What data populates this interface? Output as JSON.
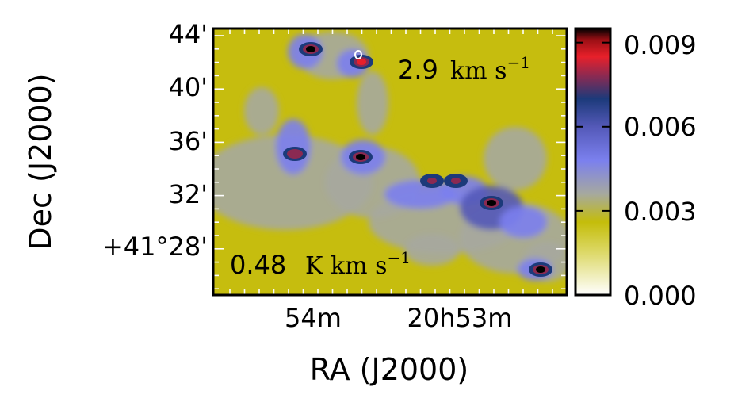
{
  "chart_data": {
    "type": "heatmap",
    "xlabel": "RA (J2000)",
    "ylabel": "Dec (J2000)",
    "x_ticks": [
      "54m",
      "20h53m"
    ],
    "y_ticks": [
      "44'",
      "40'",
      "36'",
      "32'",
      "+41°28'"
    ],
    "annotation_velocity": {
      "value": "2.9",
      "unit": "km s",
      "exponent": "−1"
    },
    "annotation_level": {
      "value": "0.48",
      "unit": "K km s",
      "exponent": "−1"
    },
    "colorbar": {
      "ticks": [
        "0.009",
        "0.006",
        "0.003",
        "0.000"
      ],
      "range": [
        0.0,
        0.0095
      ],
      "stops": [
        {
          "v": 0.0,
          "color": "#ffffff"
        },
        {
          "v": 0.0015,
          "color": "#ddd96a"
        },
        {
          "v": 0.0026,
          "color": "#c4bd0a"
        },
        {
          "v": 0.0036,
          "color": "#a6a99e"
        },
        {
          "v": 0.0048,
          "color": "#7b80ee"
        },
        {
          "v": 0.006,
          "color": "#5459b8"
        },
        {
          "v": 0.007,
          "color": "#1c3a7a"
        },
        {
          "v": 0.0078,
          "color": "#8a2a52"
        },
        {
          "v": 0.0085,
          "color": "#e8202a"
        },
        {
          "v": 0.0091,
          "color": "#9a0f14"
        },
        {
          "v": 0.0095,
          "color": "#000000"
        }
      ]
    },
    "peaks": [
      {
        "ra": "20h54m01s",
        "dec": "+41°42.8'",
        "value": 0.0095
      },
      {
        "ra": "20h53m46s",
        "dec": "+41°42.0'",
        "value": 0.0085
      },
      {
        "ra": "20h54m14s",
        "dec": "+41°34.9'",
        "value": 0.0082
      },
      {
        "ra": "20h53m48s",
        "dec": "+41°34.4'",
        "value": 0.0095
      },
      {
        "ra": "20h53m23s",
        "dec": "+41°32.0'",
        "value": 0.0078
      },
      {
        "ra": "20h53m12s",
        "dec": "+41°32.4'",
        "value": 0.008
      },
      {
        "ra": "20h52m47s",
        "dec": "+41°30.6'",
        "value": 0.0095
      },
      {
        "ra": "20h52m16s",
        "dec": "+41°25.9'",
        "value": 0.0095
      }
    ]
  }
}
